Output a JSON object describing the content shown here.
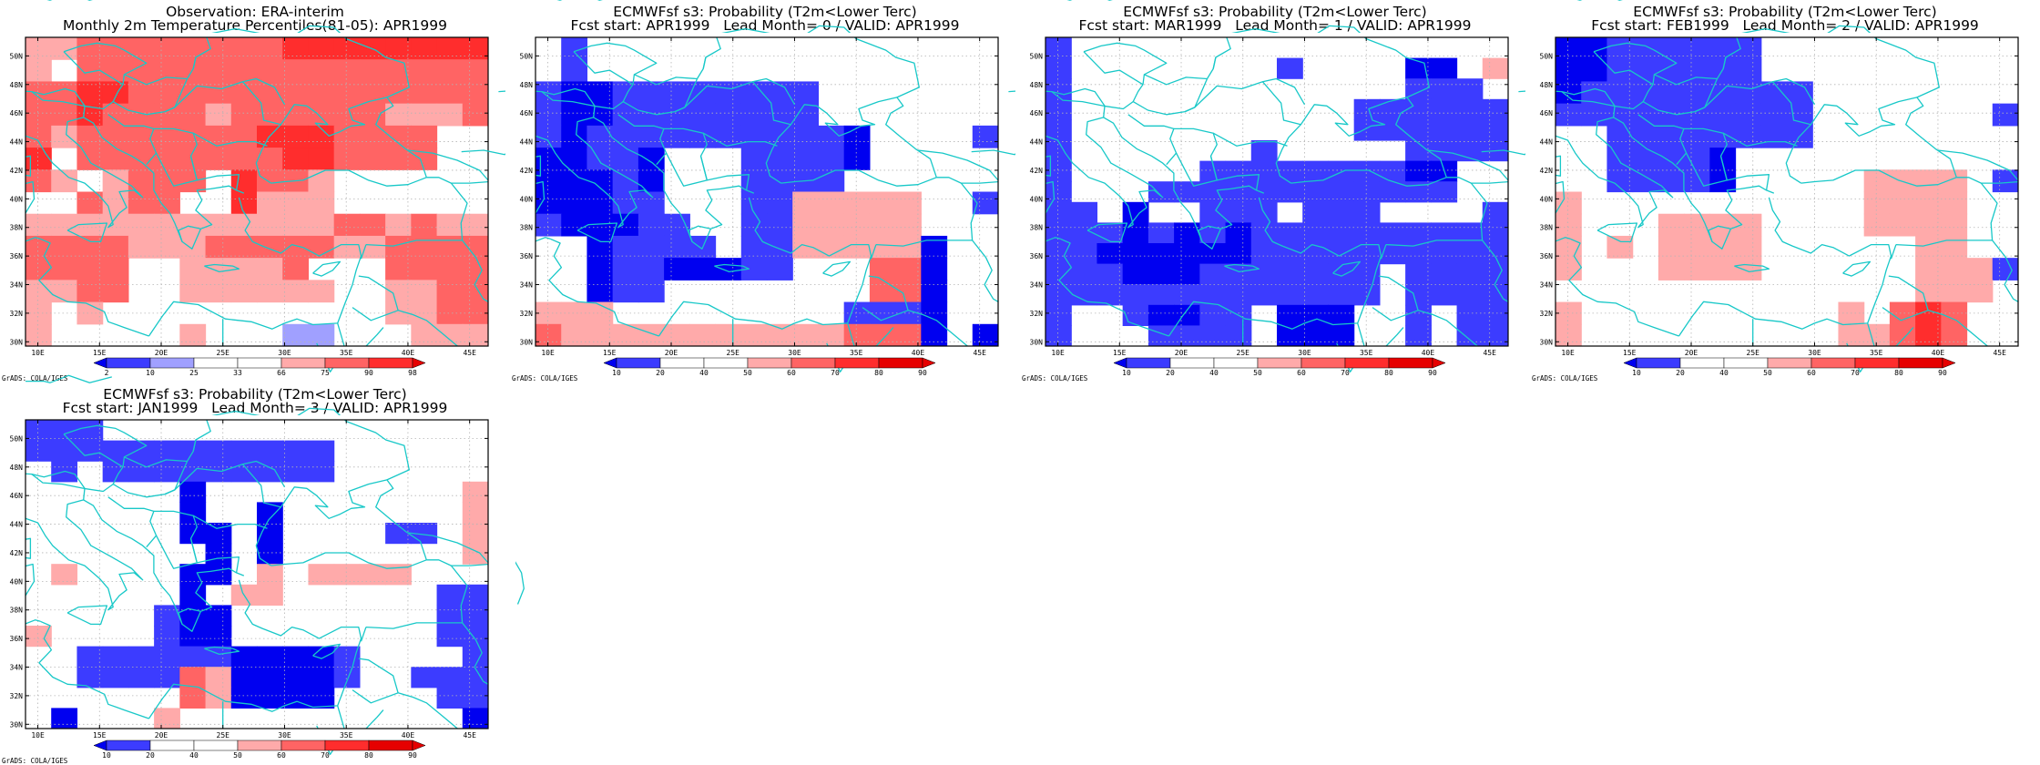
{
  "colors": {
    "b3": "#0000f0",
    "b2": "#3c3cff",
    "b1": "#a0a0ff",
    "w": "#ffffff",
    "r1": "#ffaaaa",
    "r2": "#ff6464",
    "r3": "#ff2d2d",
    "r4": "#e60000",
    "coast": "#18c8c8",
    "grid": "#b4b4b4"
  },
  "lat_ticks": [
    "30N",
    "32N",
    "34N",
    "36N",
    "38N",
    "40N",
    "42N",
    "44N",
    "46N",
    "48N",
    "50N"
  ],
  "lon_ticks": [
    "10E",
    "15E",
    "20E",
    "25E",
    "30E",
    "35E",
    "40E",
    "45E"
  ],
  "panels": [
    {
      "title1": "Observation: ERA-interim",
      "title2": "Monthly 2m Temperature Percentiles(81-05): APR1999",
      "credit": "GrADS: COLA/IGES",
      "colorbar": {
        "labels": [
          "2",
          "10",
          "25",
          "33",
          "66",
          "75",
          "90",
          "98"
        ],
        "colors": [
          "b3",
          "b2",
          "b1",
          "w",
          "w",
          "r1",
          "r2",
          "r3",
          "r4"
        ]
      },
      "grid": [
        "r1 r1 r2 r2 r2 r2 r2 r2 r2 r2 r3 r3 r3 r3 r3 r3 r3 r3",
        "r1 w  r2 r2 r2 r2 r2 r2 r2 r2 r2 r2 r2 r2 r2 r2 r2 r2",
        "r2 r2 r3 r3 r2 r2 r2 r2 r2 r2 r2 r2 r2 r2 r2 r2 r2 r2",
        "r2 r2 r3 r2 r2 r2 r2 r1 r2 r2 r2 r2 r2 r2 r1 r1 r1 r2",
        "r2 r1 r2 r2 r2 r2 r2 r2 r2 r3 r3 r3 r2 r2 r2 r2 w  w",
        "r3 w  r2 r2 r2 r2 r2 r2 r2 r2 r3 r3 r2 r2 r2 r2 w  w",
        "r2 r1 w  r1 r2 r2 r2 w  r3 r2 r2 r1 w  w  w  w  w  w",
        "w  w  r2 r1 r2 r2 w  w  r3 r1 r1 r1 w  w  w  w  w  w",
        "r1 r1 r1 r1 r1 r1 r1 r1 r1 r1 r1 r1 r2 r2 r1 r2 r1 r1",
        "r2 r2 r2 r2 r1 r1 r1 r2 r2 r2 r2 r2 r1 r1 r2 r2 r2 r2",
        "r2 r2 r2 r2 w  w  r1 r1 r1 r1 r2 w  w  w  r2 r2 r2 r2",
        "r1 r1 r2 r2 w  w  r1 r1 r1 r1 r1 r1 w  w  r1 r1 r2 r2",
        "r1 w  r1 w  w  w  w  w  w  w  w  w  w  w  r1 r1 r2 r2",
        "r1 w  w  w  w  w  r1 w  w  w  b1 b1 w  w  w  r1 r1 r1"
      ]
    },
    {
      "title1": "ECMWFsf s3: Probability (T2m<Lower Terc)",
      "title2": "Fcst start: APR1999   Lead Month= 0 / VALID: APR1999",
      "credit": "GrADS: COLA/IGES",
      "colorbar": {
        "labels": [
          "10",
          "20",
          "40",
          "50",
          "60",
          "70",
          "80",
          "90"
        ],
        "colors": [
          "b3",
          "b2",
          "w",
          "w",
          "r1",
          "r2",
          "r3",
          "r4",
          "r4"
        ]
      },
      "grid": [
        "w  b2 w  w  w  w  w  w  w  w  w  w  w  w  w  w  w  w",
        "w  b2 w  w  w  w  w  w  w  w  w  w  w  w  w  w  w  w",
        "b2 b3 b3 b2 b2 b2 b2 b2 b2 b2 b2 w  w  w  w  w  w  w",
        "b2 b3 b3 b2 b2 b2 b2 b2 b2 b2 b2 w  w  w  w  w  w  w",
        "b2 b3 b2 b2 b2 b2 b2 b2 b2 b2 b2 b2 b3 w  w  w  w  b2",
        "b3 b3 b2 b2 b3 w  w  w  b2 b2 b2 b2 b3 w  w  w  w  w",
        "b3 b3 b3 b2 b3 w  w  w  b2 b2 b2 b2 w  w  w  w  w  w",
        "b3 b3 b3 b2 b2 w  w  w  b2 b2 r1 r1 r1 r1 r1 w  w  b2",
        "b2 b3 b3 b3 b2 b2 w  w  b2 b2 r1 r1 r1 r1 r1 w  w  w",
        "w  w  b3 b2 b2 b2 b2 w  b2 b2 r1 r1 r1 r1 r1 b3 w  w",
        "w  w  b3 b2 b2 b3 b3 b3 b2 b2 w  w  w  r2 r2 b3 w  w",
        "w  w  b3 b2 b2 w  w  w  w  w  w  w  w  r2 r2 b3 w  w",
        "r1 r1 r1 w  w  w  w  w  w  w  w  w  b2 b2 b2 b3 w  w",
        "r2 r1 r1 r1 r1 r1 r1 r1 r1 r1 r1 r1 r2 r2 r2 b3 w  b3"
      ]
    },
    {
      "title1": "ECMWFsf s3: Probability (T2m<Lower Terc)",
      "title2": "Fcst start: MAR1999   Lead Month= 1 / VALID: APR1999",
      "credit": "GrADS: COLA/IGES",
      "colorbar": {
        "labels": [
          "10",
          "20",
          "40",
          "50",
          "60",
          "70",
          "80",
          "90"
        ],
        "colors": [
          "b3",
          "b2",
          "w",
          "w",
          "r1",
          "r2",
          "r3",
          "r4",
          "r4"
        ]
      },
      "grid": [
        "b2 w  w  w  w  w  w  w  w  w  w  w  w  w  w  w  w  w",
        "b2 w  w  w  w  w  w  w  w  b2 w  w  w  w  b3 b3 w  r1",
        "b2 w  w  w  w  w  w  w  w  w  w  w  w  w  b2 b2 b2 w",
        "b2 w  w  w  w  w  w  w  w  w  w  w  b2 b2 b2 b2 b2 b2",
        "b2 w  w  w  w  w  w  w  w  w  w  w  b2 b2 b2 b2 b2 b2",
        "b2 w  w  w  w  w  w  w  b2 w  w  w  w  w  b2 b2 b2 b2",
        "b2 w  w  w  w  w  b2 b2 b2 b2 b2 b2 b2 b2 b3 b3 w  w",
        "b2 w  w  w  b2 b2 b2 b2 b2 b2 b2 b2 b2 b2 b2 b2 w  w",
        "b2 b2 w  b3 w  w  b2 b2 b2 w  b2 b2 b2 w  w  w  w  b2",
        "b2 b2 b2 b3 b2 b3 b2 b3 b2 b2 b2 b2 b2 b2 b2 b2 b2 b2",
        "b2 b2 b3 b3 b3 b3 b3 b3 b2 b2 b2 b2 b2 b2 b2 b2 b2 b2",
        "b2 b2 b2 b3 b3 b3 b2 b2 b2 b2 b2 b2 b2 w  b2 b2 b2 b2",
        "b2 b2 b2 b2 b2 b2 b2 b2 b2 b2 b2 b2 b2 w  b2 b2 b2 b2",
        "b2 w  w  b2 b3 b3 b2 b2 w  b3 b3 b3 w  w  b2 w  b2 b2",
        "b2 w  w  w  b2 b2 b2 b2 w  b3 b3 b3 w  w  b2 w  b2 b2"
      ]
    },
    {
      "title1": "ECMWFsf s3: Probability (T2m<Lower Terc)",
      "title2": "Fcst start: FEB1999   Lead Month= 2 / VALID: APR1999",
      "credit": "GrADS: COLA/IGES",
      "colorbar": {
        "labels": [
          "10",
          "20",
          "40",
          "50",
          "60",
          "70",
          "80",
          "90"
        ],
        "colors": [
          "b3",
          "b2",
          "w",
          "w",
          "r1",
          "r2",
          "r3",
          "r4",
          "r4"
        ]
      },
      "grid": [
        "b3 b3 b2 b2 b2 b2 b2 b2 w  w  w  w  w  w  w  w  w  w",
        "b3 b3 b2 b2 b2 b2 b2 b2 w  w  w  w  w  w  w  w  w  w",
        "b3 b2 b2 b2 b2 b2 b2 b2 b2 b2 w  w  w  w  w  w  w  w",
        "b2 b2 b2 b2 b2 b2 b2 b2 b2 b2 w  w  w  w  w  w  w  b2",
        "w  w  b2 b2 b2 b2 b2 b2 b2 b2 w  w  w  w  w  w  w  w",
        "w  w  b2 b2 b2 b2 b3 w  w  w  w  w  w  w  w  w  w  w",
        "w  w  b2 b2 b2 b2 b3 w  w  w  w  w  r1 r1 r1 r1 w  b2",
        "r1 w  w  w  w  w  w  w  w  w  w  w  r1 r1 r1 r1 w  w",
        "r1 w  w  w  r1 r1 r1 r1 w  w  w  w  r1 r1 r1 r1 w  w",
        "r1 w  r1 w  r1 r1 r1 r1 w  w  w  w  w  w  r1 r1 w  w",
        "r1 w  w  w  r1 r1 r1 r1 w  w  w  w  w  w  r1 r1 r1 b2",
        "w  w  w  w  w  w  w  w  w  w  w  w  w  w  r1 r1 r1 w",
        "r1 w  w  w  w  w  w  w  w  w  w  r1 w  r2 r3 r2 w  w",
        "r1 w  w  w  w  w  w  w  w  w  w  r1 r1 r2 r3 r2 w  w"
      ]
    },
    {
      "title1": "ECMWFsf s3: Probability (T2m<Lower Terc)",
      "title2": "Fcst start: JAN1999   Lead Month= 3 / VALID: APR1999",
      "credit": "GrADS: COLA/IGES",
      "colorbar": {
        "labels": [
          "10",
          "20",
          "40",
          "50",
          "60",
          "70",
          "80",
          "90"
        ],
        "colors": [
          "b3",
          "b2",
          "w",
          "w",
          "r1",
          "r2",
          "r3",
          "r4",
          "r4"
        ]
      },
      "grid": [
        "b2 b2 b2 w  w  w  w  w  w  w  w  w  w  w  w  w  w  w",
        "b2 b2 b2 b2 b2 b2 b2 b2 b2 b2 b2 b2 w  w  w  w  w  w",
        "w  b2 w  b2 b2 b2 b2 b2 b2 b2 b2 b2 w  w  w  w  w  w",
        "w  w  w  w  w  w  b3 w  w  w  w  w  w  w  w  w  w  r1",
        "w  w  w  w  w  w  b3 w  w  b3 w  w  w  w  w  w  w  r1",
        "w  w  w  w  w  w  b3 b3 w  b3 w  w  w  w  b2 b2 w  r1",
        "w  w  w  w  w  w  w  b3 w  b3 w  w  w  w  w  w  w  r1",
        "w  r1 w  w  w  w  b3 b3 w  r1 w  r1 r1 r1 r1 w  w  w",
        "w  w  w  w  w  w  b3 w  r1 r1 w  w  w  w  w  w  b2 b2",
        "w  w  w  w  w  b2 b3 b3 w  w  w  w  w  w  w  w  b2 b2",
        "r1 w  w  w  w  b2 b3 b3 w  w  w  w  w  w  w  w  b2 b2",
        "w  w  b2 b2 b2 b2 b2 b2 b3 b3 b3 b3 b2 w  w  w  w  b2",
        "w  w  b2 b2 b2 b2 r2 r1 b3 b3 b3 b3 b2 w  w  b2 b2 b2",
        "w  w  w  w  w  w  r2 r1 b3 b3 b3 b3 w  w  w  w  b2 b2",
        "w  b3 w  w  w  r1 w  w  w  w  w  w  w  w  w  w  w  b3"
      ]
    }
  ]
}
